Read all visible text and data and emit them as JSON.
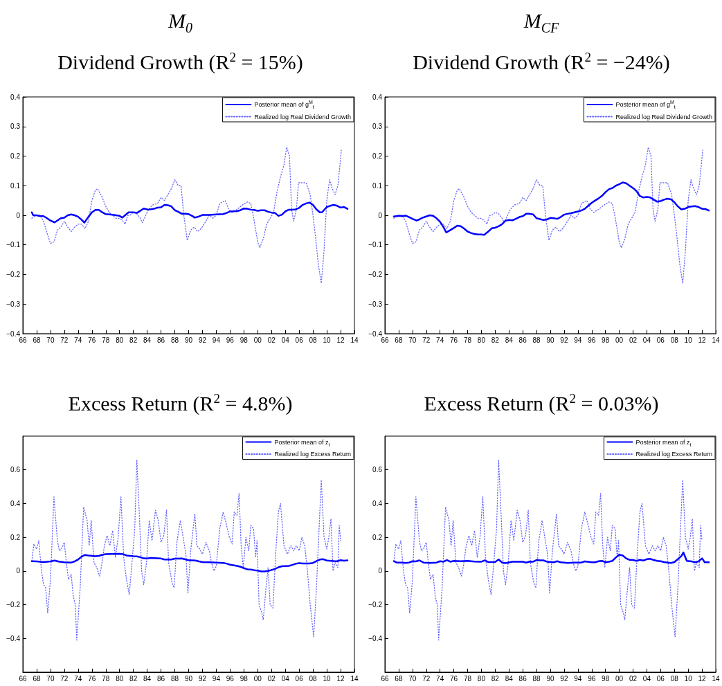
{
  "chart_data": [
    {
      "type": "line",
      "title": "Dividend Growth (R$^{2}$ = 15%)",
      "annotations": [
        "M$_{0}$"
      ],
      "xlim": [
        1966,
        2014
      ],
      "ylim": [
        -0.4,
        0.4
      ],
      "yticks": [
        -0.4,
        -0.3,
        -0.2,
        -0.1,
        0,
        0.1,
        0.2,
        0.3,
        0.4
      ],
      "xticks": [
        {
          "value": 1966,
          "label": "66"
        },
        {
          "value": 1968,
          "label": "68"
        },
        {
          "value": 1970,
          "label": "70"
        },
        {
          "value": 1972,
          "label": "72"
        },
        {
          "value": 1974,
          "label": "74"
        },
        {
          "value": 1976,
          "label": "76"
        },
        {
          "value": 1978,
          "label": "78"
        },
        {
          "value": 1980,
          "label": "80"
        },
        {
          "value": 1982,
          "label": "82"
        },
        {
          "value": 1984,
          "label": "84"
        },
        {
          "value": 1986,
          "label": "86"
        },
        {
          "value": 1988,
          "label": "88"
        },
        {
          "value": 1990,
          "label": "90"
        },
        {
          "value": 1992,
          "label": "92"
        },
        {
          "value": 1994,
          "label": "94"
        },
        {
          "value": 1996,
          "label": "96"
        },
        {
          "value": 1998,
          "label": "98"
        },
        {
          "value": 2000,
          "label": "00"
        },
        {
          "value": 2002,
          "label": "02"
        },
        {
          "value": 2004,
          "label": "04"
        },
        {
          "value": 2006,
          "label": "06"
        },
        {
          "value": 2008,
          "label": "08"
        },
        {
          "value": 2010,
          "label": "10"
        },
        {
          "value": 2012,
          "label": "12"
        },
        {
          "value": 2014,
          "label": "14"
        }
      ],
      "grid": false,
      "legend": "top right",
      "marker": "none",
      "series": [
        {
          "name": "Posterior mean of g$^{M}$$_{t}$",
          "color": "#0000ff",
          "line_style": "solid",
          "x": [
            1967.3,
            1967.5,
            1968,
            1968.5,
            1969,
            1969.5,
            1970,
            1970.6,
            1971.5,
            1972,
            1972.5,
            1973,
            1973.5,
            1974,
            1974.5,
            1974.9,
            1975.5,
            1976,
            1976.5,
            1977,
            1977.5,
            1978,
            1979,
            1979.5,
            1980,
            1980.4,
            1980.8,
            1981.3,
            1982,
            1982.5,
            1983,
            1983.5,
            1984.2,
            1985,
            1985.5,
            1986,
            1986.5,
            1987,
            1987.5,
            1988,
            1988.5,
            1989,
            1989.5,
            1990,
            1990.5,
            1990.9,
            1991.5,
            1992,
            1993,
            1994,
            1995,
            1995.5,
            1996,
            1997,
            1997.5,
            1998,
            1998.5,
            1999,
            1999.5,
            2000,
            2000.5,
            2001,
            2001.5,
            2002,
            2002.5,
            2003,
            2003.5,
            2004,
            2004.5,
            2005,
            2005.5,
            2006,
            2006.5,
            2007,
            2007.5,
            2008,
            2008.5,
            2009,
            2009.3,
            2010,
            2010.5,
            2011,
            2011.5,
            2012,
            2012.5,
            2013
          ],
          "values": [
            0.01,
            0,
            0,
            -0.003,
            -0.003,
            -0.01,
            -0.018,
            -0.024,
            -0.01,
            -0.008,
            0,
            0.003,
            0,
            -0.005,
            -0.015,
            -0.025,
            -0.005,
            0.01,
            0.018,
            0.018,
            0.01,
            0.004,
            0.002,
            0,
            -0.002,
            -0.008,
            0,
            0.01,
            0.01,
            0.008,
            0.015,
            0.023,
            0.019,
            0.022,
            0.026,
            0.027,
            0.035,
            0.034,
            0.03,
            0.017,
            0.012,
            0.005,
            0.005,
            0.004,
            -0.002,
            -0.008,
            -0.004,
            0.001,
            0.001,
            0.003,
            0.004,
            0.008,
            0.013,
            0.014,
            0.017,
            0.023,
            0.022,
            0.019,
            0.018,
            0.015,
            0.017,
            0.017,
            0.012,
            0.009,
            0.008,
            -0.002,
            0.002,
            0.013,
            0.019,
            0.019,
            0.02,
            0.025,
            0.035,
            0.04,
            0.043,
            0.035,
            0.02,
            0.01,
            0.01,
            0.028,
            0.032,
            0.035,
            0.032,
            0.026,
            0.028,
            0.022
          ]
        },
        {
          "name": "Realized log Real Dividend Growth",
          "color": "#6666ff",
          "line_style": "dotted",
          "x": [
            1967.3,
            1968,
            1968.5,
            1969,
            1969.5,
            1970,
            1970.5,
            1971,
            1971.5,
            1972,
            1972.5,
            1973,
            1973.5,
            1974,
            1974.5,
            1975,
            1975.5,
            1976,
            1976.5,
            1976.8,
            1977.5,
            1978,
            1978.5,
            1979,
            1979.5,
            1980,
            1980.5,
            1980.8,
            1981.2,
            1981.5,
            1982,
            1982.5,
            1983,
            1983.3,
            1983.8,
            1984.2,
            1984.8,
            1985.5,
            1986,
            1986.5,
            1987,
            1987.5,
            1988,
            1988.5,
            1988.9,
            1989.3,
            1989.8,
            1990.3,
            1990.8,
            1991.3,
            1991.8,
            1992.5,
            1993,
            1993.5,
            1994,
            1994.5,
            1995.3,
            1995.8,
            1996.3,
            1997,
            1997.8,
            1998.5,
            1999,
            1999.5,
            2000,
            2000.3,
            2000.8,
            2001.3,
            2001.8,
            2002.3,
            2002.8,
            2003.3,
            2003.8,
            2004.2,
            2004.6,
            2004.9,
            2005.2,
            2005.6,
            2005.9,
            2006.5,
            2007,
            2007.6,
            2008,
            2008.4,
            2008.8,
            2009.2,
            2009.6,
            2010,
            2010.4,
            2010.8,
            2011.2,
            2011.6,
            2011.9,
            2012.1
          ],
          "values": [
            -0.01,
            0,
            0,
            -0.02,
            -0.06,
            -0.095,
            -0.09,
            -0.05,
            -0.04,
            -0.02,
            -0.04,
            -0.055,
            -0.04,
            -0.03,
            -0.03,
            -0.045,
            -0.02,
            0.05,
            0.085,
            0.09,
            0.06,
            0.03,
            0.01,
            0,
            -0.01,
            -0.01,
            -0.02,
            -0.03,
            0,
            0,
            0.01,
            0.005,
            -0.01,
            -0.025,
            0,
            0.02,
            0.035,
            0.04,
            0.06,
            0.05,
            0.07,
            0.09,
            0.12,
            0.1,
            0.1,
            0,
            -0.085,
            -0.05,
            -0.04,
            -0.055,
            -0.045,
            -0.02,
            0,
            -0.01,
            0,
            0.04,
            0.05,
            0.02,
            0.01,
            0.02,
            0.035,
            0.045,
            0.04,
            -0.02,
            -0.09,
            -0.11,
            -0.08,
            -0.03,
            -0.01,
            0.01,
            0.08,
            0.13,
            0.17,
            0.23,
            0.2,
            0.02,
            -0.02,
            0.02,
            0.11,
            0.11,
            0.11,
            0.07,
            0,
            -0.08,
            -0.17,
            -0.23,
            -0.12,
            0.05,
            0.12,
            0.09,
            0.07,
            0.1,
            0.17,
            0.22
          ]
        }
      ]
    },
    {
      "type": "line",
      "title": "Dividend Growth (R$^{2}$ = −24%)",
      "annotations": [
        "M$_{CF}$"
      ],
      "xlim": [
        1966,
        2014
      ],
      "ylim": [
        -0.4,
        0.4
      ],
      "yticks": [
        -0.4,
        -0.3,
        -0.2,
        -0.1,
        0,
        0.1,
        0.2,
        0.3,
        0.4
      ],
      "xticks": [
        {
          "value": 1966,
          "label": "66"
        },
        {
          "value": 1968,
          "label": "68"
        },
        {
          "value": 1970,
          "label": "70"
        },
        {
          "value": 1972,
          "label": "72"
        },
        {
          "value": 1974,
          "label": "74"
        },
        {
          "value": 1976,
          "label": "76"
        },
        {
          "value": 1978,
          "label": "78"
        },
        {
          "value": 1980,
          "label": "80"
        },
        {
          "value": 1982,
          "label": "82"
        },
        {
          "value": 1984,
          "label": "84"
        },
        {
          "value": 1986,
          "label": "86"
        },
        {
          "value": 1988,
          "label": "88"
        },
        {
          "value": 1990,
          "label": "90"
        },
        {
          "value": 1992,
          "label": "92"
        },
        {
          "value": 1994,
          "label": "94"
        },
        {
          "value": 1996,
          "label": "96"
        },
        {
          "value": 1998,
          "label": "98"
        },
        {
          "value": 2000,
          "label": "00"
        },
        {
          "value": 2002,
          "label": "02"
        },
        {
          "value": 2004,
          "label": "04"
        },
        {
          "value": 2006,
          "label": "06"
        },
        {
          "value": 2008,
          "label": "08"
        },
        {
          "value": 2010,
          "label": "10"
        },
        {
          "value": 2012,
          "label": "12"
        },
        {
          "value": 2014,
          "label": "14"
        }
      ],
      "grid": false,
      "legend": "top right",
      "marker": "none",
      "series": [
        {
          "name": "Posterior mean of g$^{M}$$_{t}$",
          "color": "#0000ff",
          "line_style": "solid",
          "x": [
            1967.3,
            1968,
            1968.5,
            1969,
            1969.5,
            1970,
            1970.6,
            1971,
            1971.5,
            1972,
            1972.5,
            1973,
            1973.5,
            1974,
            1974.5,
            1974.9,
            1975.5,
            1976,
            1976.5,
            1977,
            1977.5,
            1978,
            1978.5,
            1979,
            1979.5,
            1980,
            1980.4,
            1981,
            1981.5,
            1982,
            1982.5,
            1983,
            1983.5,
            1984,
            1984.5,
            1985,
            1985.5,
            1986,
            1986.5,
            1987,
            1987.5,
            1988,
            1988.5,
            1989,
            1989.5,
            1990,
            1990.5,
            1991,
            1991.5,
            1992,
            1992.5,
            1993,
            1993.5,
            1994,
            1994.5,
            1995,
            1995.5,
            1996,
            1996.5,
            1997,
            1997.5,
            1998,
            1998.5,
            1999,
            1999.5,
            2000,
            2000.5,
            2001,
            2001.5,
            2002,
            2002.5,
            2003,
            2003.5,
            2004,
            2004.5,
            2005,
            2005.5,
            2006,
            2006.5,
            2007,
            2007.5,
            2008,
            2008.5,
            2009,
            2009.5,
            2010,
            2010.5,
            2011,
            2011.5,
            2012,
            2012.5,
            2013
          ],
          "values": [
            -0.004,
            -0.002,
            -0.003,
            -0.001,
            -0.006,
            -0.012,
            -0.018,
            -0.014,
            -0.008,
            -0.004,
            0,
            -0.002,
            -0.01,
            -0.022,
            -0.04,
            -0.058,
            -0.05,
            -0.043,
            -0.035,
            -0.037,
            -0.045,
            -0.055,
            -0.06,
            -0.063,
            -0.065,
            -0.065,
            -0.066,
            -0.055,
            -0.044,
            -0.042,
            -0.037,
            -0.03,
            -0.018,
            -0.016,
            -0.017,
            -0.012,
            -0.006,
            -0.003,
            0.005,
            0.005,
            0.003,
            -0.01,
            -0.013,
            -0.016,
            -0.014,
            -0.009,
            -0.01,
            -0.012,
            -0.006,
            0.002,
            0.005,
            0.007,
            0.01,
            0.013,
            0.016,
            0.022,
            0.032,
            0.042,
            0.05,
            0.057,
            0.066,
            0.078,
            0.088,
            0.092,
            0.1,
            0.105,
            0.111,
            0.108,
            0.1,
            0.092,
            0.082,
            0.065,
            0.06,
            0.062,
            0.06,
            0.053,
            0.046,
            0.048,
            0.053,
            0.056,
            0.054,
            0.044,
            0.03,
            0.02,
            0.022,
            0.028,
            0.03,
            0.031,
            0.028,
            0.022,
            0.021,
            0.016
          ]
        },
        {
          "name": "Realized log Real Dividend Growth",
          "color": "#6666ff",
          "line_style": "dotted",
          "x": [
            1967.3,
            1968,
            1968.5,
            1969,
            1969.5,
            1970,
            1970.5,
            1971,
            1971.5,
            1972,
            1972.5,
            1973,
            1973.5,
            1974,
            1974.5,
            1975,
            1975.5,
            1976,
            1976.5,
            1976.8,
            1977.5,
            1978,
            1978.5,
            1979,
            1979.5,
            1980,
            1980.5,
            1980.8,
            1981.2,
            1981.5,
            1982,
            1982.5,
            1983,
            1983.3,
            1983.8,
            1984.2,
            1984.8,
            1985.5,
            1986,
            1986.5,
            1987,
            1987.5,
            1988,
            1988.5,
            1988.9,
            1989.3,
            1989.8,
            1990.3,
            1990.8,
            1991.3,
            1991.8,
            1992.5,
            1993,
            1993.5,
            1994,
            1994.5,
            1995.3,
            1995.8,
            1996.3,
            1997,
            1997.8,
            1998.5,
            1999,
            1999.5,
            2000,
            2000.3,
            2000.8,
            2001.3,
            2001.8,
            2002.3,
            2002.8,
            2003.3,
            2003.8,
            2004.2,
            2004.6,
            2004.9,
            2005.2,
            2005.6,
            2005.9,
            2006.5,
            2007,
            2007.6,
            2008,
            2008.4,
            2008.8,
            2009.2,
            2009.6,
            2010,
            2010.4,
            2010.8,
            2011.2,
            2011.6,
            2011.9,
            2012.1
          ],
          "values": [
            -0.01,
            0,
            0,
            -0.02,
            -0.06,
            -0.095,
            -0.09,
            -0.05,
            -0.04,
            -0.02,
            -0.04,
            -0.055,
            -0.04,
            -0.03,
            -0.03,
            -0.045,
            -0.02,
            0.05,
            0.085,
            0.09,
            0.06,
            0.03,
            0.01,
            0,
            -0.01,
            -0.01,
            -0.02,
            -0.03,
            0,
            0,
            0.01,
            0.005,
            -0.01,
            -0.025,
            0,
            0.02,
            0.035,
            0.04,
            0.06,
            0.05,
            0.07,
            0.09,
            0.12,
            0.1,
            0.1,
            0,
            -0.085,
            -0.05,
            -0.04,
            -0.055,
            -0.045,
            -0.02,
            0,
            -0.01,
            0,
            0.04,
            0.05,
            0.02,
            0.01,
            0.02,
            0.035,
            0.045,
            0.04,
            -0.02,
            -0.09,
            -0.11,
            -0.08,
            -0.03,
            -0.01,
            0.01,
            0.08,
            0.13,
            0.17,
            0.23,
            0.2,
            0.02,
            -0.02,
            0.02,
            0.11,
            0.11,
            0.11,
            0.07,
            0,
            -0.08,
            -0.17,
            -0.23,
            -0.12,
            0.05,
            0.12,
            0.09,
            0.07,
            0.1,
            0.17,
            0.22
          ]
        }
      ]
    },
    {
      "type": "line",
      "title": "Excess Return (R$^{2}$ = 4.8%)",
      "xlim": [
        1966,
        2014
      ],
      "ylim": [
        -0.6,
        0.8
      ],
      "yticks": [
        -0.4,
        -0.2,
        0,
        0.2,
        0.4,
        0.6
      ],
      "xticks": [
        {
          "value": 1966,
          "label": "66"
        },
        {
          "value": 1968,
          "label": "68"
        },
        {
          "value": 1970,
          "label": "70"
        },
        {
          "value": 1972,
          "label": "72"
        },
        {
          "value": 1974,
          "label": "74"
        },
        {
          "value": 1976,
          "label": "76"
        },
        {
          "value": 1978,
          "label": "78"
        },
        {
          "value": 1980,
          "label": "80"
        },
        {
          "value": 1982,
          "label": "82"
        },
        {
          "value": 1984,
          "label": "84"
        },
        {
          "value": 1986,
          "label": "86"
        },
        {
          "value": 1988,
          "label": "88"
        },
        {
          "value": 1990,
          "label": "90"
        },
        {
          "value": 1992,
          "label": "92"
        },
        {
          "value": 1994,
          "label": "94"
        },
        {
          "value": 1996,
          "label": "96"
        },
        {
          "value": 1998,
          "label": "98"
        },
        {
          "value": 2000,
          "label": "00"
        },
        {
          "value": 2002,
          "label": "02"
        },
        {
          "value": 2004,
          "label": "04"
        },
        {
          "value": 2006,
          "label": "06"
        },
        {
          "value": 2008,
          "label": "08"
        },
        {
          "value": 2010,
          "label": "10"
        },
        {
          "value": 2012,
          "label": "12"
        },
        {
          "value": 2014,
          "label": "14"
        }
      ],
      "grid": false,
      "legend": "top right",
      "marker": "none",
      "series": [
        {
          "name": "Posterior mean of z$_{t}$",
          "color": "#0000ff",
          "line_style": "solid",
          "x": [
            1967.3,
            1968,
            1969,
            1970,
            1970.6,
            1971.2,
            1972,
            1973,
            1973.5,
            1974,
            1974.5,
            1975,
            1975.5,
            1976,
            1976.5,
            1977,
            1977.5,
            1978,
            1979,
            1980,
            1980.5,
            1981,
            1982,
            1982.5,
            1983,
            1983.5,
            1984,
            1984.5,
            1985.5,
            1986,
            1986.5,
            1987.5,
            1988,
            1989,
            1989.5,
            1990,
            1991,
            1991.5,
            1992,
            1993,
            1994,
            1995,
            1995.5,
            1996,
            1997,
            1997.5,
            1998,
            1998.5,
            1999,
            1999.5,
            2000,
            2000.5,
            2001,
            2001.5,
            2002,
            2002.5,
            2003,
            2003.5,
            2004.5,
            2005,
            2005.5,
            2006,
            2006.5,
            2007,
            2007.5,
            2008,
            2008.5,
            2009,
            2009.5,
            2010,
            2011,
            2011.5,
            2012,
            2012.5,
            2013
          ],
          "values": [
            0.058,
            0.057,
            0.053,
            0.057,
            0.062,
            0.056,
            0.052,
            0.05,
            0.057,
            0.068,
            0.085,
            0.095,
            0.092,
            0.09,
            0.088,
            0.09,
            0.096,
            0.1,
            0.101,
            0.102,
            0.1,
            0.092,
            0.088,
            0.087,
            0.082,
            0.075,
            0.074,
            0.077,
            0.075,
            0.074,
            0.068,
            0.068,
            0.073,
            0.074,
            0.069,
            0.064,
            0.062,
            0.057,
            0.053,
            0.052,
            0.05,
            0.048,
            0.044,
            0.037,
            0.03,
            0.025,
            0.017,
            0.01,
            0.009,
            0.005,
            0.002,
            -0.003,
            -0.003,
            0,
            0.006,
            0.012,
            0.022,
            0.028,
            0.03,
            0.036,
            0.043,
            0.047,
            0.045,
            0.045,
            0.045,
            0.048,
            0.058,
            0.068,
            0.07,
            0.062,
            0.059,
            0.058,
            0.064,
            0.061,
            0.063
          ]
        },
        {
          "name": "Realized log Excess Return",
          "color": "#6666ff",
          "line_style": "dotted",
          "x": [
            1967.3,
            1967.6,
            1968,
            1968.3,
            1968.7,
            1969,
            1969.3,
            1969.6,
            1970,
            1970.5,
            1971,
            1971.3,
            1971.6,
            1972,
            1972.3,
            1972.6,
            1973,
            1973.3,
            1973.6,
            1973.8,
            1974.3,
            1974.8,
            1975.3,
            1975.6,
            1975.9,
            1976.3,
            1976.7,
            1977.1,
            1977.4,
            1977.8,
            1978.2,
            1978.6,
            1979,
            1979.4,
            1979.8,
            1980.2,
            1980.6,
            1981,
            1981.4,
            1981.8,
            1982.2,
            1982.5,
            1982.9,
            1983.2,
            1983.5,
            1983.9,
            1984.3,
            1984.7,
            1985.2,
            1985.6,
            1986,
            1986.4,
            1986.8,
            1987.1,
            1987.6,
            1987.9,
            1988.3,
            1988.8,
            1989.2,
            1989.6,
            1989.9,
            1990.3,
            1990.9,
            1991.2,
            1991.6,
            1992,
            1992.5,
            1993,
            1993.3,
            1993.7,
            1994,
            1994.5,
            1995,
            1995.5,
            1995.9,
            1996.3,
            1996.6,
            1997,
            1997.3,
            1997.6,
            1997.9,
            1998.3,
            1998.7,
            1999,
            1999.4,
            1999.7,
            1999.9,
            2000.2,
            2000.6,
            2000.8,
            2001.2,
            2001.5,
            2001.8,
            2002.2,
            2002.6,
            2003,
            2003.3,
            2003.8,
            2004.3,
            2004.8,
            2005.2,
            2005.6,
            2006,
            2006.4,
            2006.8,
            2007.2,
            2007.6,
            2008.1,
            2008.5,
            2009.2,
            2009.6,
            2010,
            2010.3,
            2010.6,
            2010.9,
            2011.2,
            2011.6,
            2011.8,
            2012
          ],
          "values": [
            0.06,
            0.16,
            0.13,
            0.18,
            0,
            -0.08,
            -0.1,
            -0.25,
            -0.05,
            0.44,
            0.18,
            0.12,
            0.13,
            0.17,
            0.05,
            -0.05,
            -0.02,
            -0.15,
            -0.2,
            -0.41,
            -0.1,
            0.38,
            0.3,
            0.15,
            0.3,
            0.05,
            0.02,
            -0.03,
            0.03,
            0.15,
            0.21,
            0.15,
            0.24,
            0.08,
            0.2,
            0.44,
            0.08,
            -0.05,
            -0.14,
            0.05,
            0.25,
            0.66,
            0.3,
            0,
            -0.08,
            0.05,
            0.3,
            0.18,
            0.36,
            0.3,
            0.17,
            0.21,
            0.36,
            0.05,
            -0.07,
            -0.1,
            0.17,
            0.3,
            0.2,
            0.1,
            -0.13,
            0.12,
            0.34,
            0.15,
            0.13,
            0.1,
            0.17,
            0.12,
            0.05,
            0,
            0.03,
            0.25,
            0.35,
            0.27,
            0.2,
            0.16,
            0.35,
            0.33,
            0.46,
            0.15,
            0.02,
            0.2,
            0.12,
            0.27,
            0.25,
            0.08,
            0.18,
            -0.2,
            -0.25,
            -0.29,
            -0.1,
            0.02,
            -0.2,
            -0.22,
            0.1,
            0.35,
            0.4,
            0.15,
            0.1,
            0.15,
            0.12,
            0.15,
            0.12,
            0.2,
            0.15,
            0,
            -0.2,
            -0.39,
            -0.1,
            0.54,
            0.2,
            0.13,
            0.2,
            0.31,
            0,
            0.05,
            0.02,
            0.27,
            0.18
          ]
        }
      ]
    },
    {
      "type": "line",
      "title": "Excess Return (R$^{2}$ = 0.03%)",
      "xlim": [
        1966,
        2014
      ],
      "ylim": [
        -0.6,
        0.8
      ],
      "yticks": [
        -0.4,
        -0.2,
        0,
        0.2,
        0.4,
        0.6
      ],
      "xticks": [
        {
          "value": 1966,
          "label": "66"
        },
        {
          "value": 1968,
          "label": "68"
        },
        {
          "value": 1970,
          "label": "70"
        },
        {
          "value": 1972,
          "label": "72"
        },
        {
          "value": 1974,
          "label": "74"
        },
        {
          "value": 1976,
          "label": "76"
        },
        {
          "value": 1978,
          "label": "78"
        },
        {
          "value": 1980,
          "label": "80"
        },
        {
          "value": 1982,
          "label": "82"
        },
        {
          "value": 1984,
          "label": "84"
        },
        {
          "value": 1986,
          "label": "86"
        },
        {
          "value": 1988,
          "label": "88"
        },
        {
          "value": 1990,
          "label": "90"
        },
        {
          "value": 1992,
          "label": "92"
        },
        {
          "value": 1994,
          "label": "94"
        },
        {
          "value": 1996,
          "label": "96"
        },
        {
          "value": 1998,
          "label": "98"
        },
        {
          "value": 2000,
          "label": "00"
        },
        {
          "value": 2002,
          "label": "02"
        },
        {
          "value": 2004,
          "label": "04"
        },
        {
          "value": 2006,
          "label": "06"
        },
        {
          "value": 2008,
          "label": "08"
        },
        {
          "value": 2010,
          "label": "10"
        },
        {
          "value": 2012,
          "label": "12"
        },
        {
          "value": 2014,
          "label": "14"
        }
      ],
      "grid": false,
      "legend": "top right",
      "marker": "none",
      "series": [
        {
          "name": "Posterior mean of z$_{t}$",
          "color": "#0000ff",
          "line_style": "solid",
          "x": [
            1967.3,
            1967.7,
            1968.5,
            1969,
            1969.5,
            1970,
            1970.5,
            1971,
            1971.6,
            1972.5,
            1973.5,
            1974,
            1974.5,
            1975,
            1975.5,
            1976,
            1977,
            1978,
            1979,
            1980,
            1980.5,
            1981,
            1982,
            1982.5,
            1983,
            1983.5,
            1984.5,
            1986,
            1986.5,
            1987,
            1987.5,
            1988,
            1988.5,
            1989,
            1989.5,
            1990.5,
            1991,
            1991.5,
            1992.5,
            1993.5,
            1994.5,
            1995,
            1996,
            1996.5,
            1997,
            1997.5,
            1998,
            1998.5,
            1999,
            1999.5,
            2000,
            2000.5,
            2001,
            2001.5,
            2002,
            2002.5,
            2003,
            2003.5,
            2004,
            2004.5,
            2005,
            2005.5,
            2006,
            2006.5,
            2007,
            2007.5,
            2008,
            2008.5,
            2009,
            2009.3,
            2009.8,
            2010.5,
            2011,
            2011.5,
            2012,
            2012.4,
            2013
          ],
          "values": [
            0.058,
            0.05,
            0.05,
            0.048,
            0.05,
            0.058,
            0.057,
            0.063,
            0.05,
            0.048,
            0.05,
            0.058,
            0.055,
            0.065,
            0.055,
            0.06,
            0.058,
            0.06,
            0.056,
            0.055,
            0.063,
            0.053,
            0.054,
            0.068,
            0.05,
            0.047,
            0.055,
            0.055,
            0.05,
            0.056,
            0.055,
            0.065,
            0.063,
            0.063,
            0.055,
            0.052,
            0.058,
            0.052,
            0.048,
            0.05,
            0.05,
            0.057,
            0.052,
            0.052,
            0.058,
            0.06,
            0.052,
            0.055,
            0.06,
            0.08,
            0.097,
            0.092,
            0.075,
            0.066,
            0.065,
            0.06,
            0.066,
            0.062,
            0.07,
            0.072,
            0.065,
            0.06,
            0.058,
            0.053,
            0.05,
            0.048,
            0.053,
            0.07,
            0.088,
            0.11,
            0.06,
            0.057,
            0.052,
            0.057,
            0.075,
            0.052,
            0.052
          ]
        },
        {
          "name": "Realized log Excess Return",
          "color": "#6666ff",
          "line_style": "dotted",
          "x": [
            1967.3,
            1967.6,
            1968,
            1968.3,
            1968.7,
            1969,
            1969.3,
            1969.6,
            1970,
            1970.5,
            1971,
            1971.3,
            1971.6,
            1972,
            1972.3,
            1972.6,
            1973,
            1973.3,
            1973.6,
            1973.8,
            1974.3,
            1974.8,
            1975.3,
            1975.6,
            1975.9,
            1976.3,
            1976.7,
            1977.1,
            1977.4,
            1977.8,
            1978.2,
            1978.6,
            1979,
            1979.4,
            1979.8,
            1980.2,
            1980.6,
            1981,
            1981.4,
            1981.8,
            1982.2,
            1982.5,
            1982.9,
            1983.2,
            1983.5,
            1983.9,
            1984.3,
            1984.7,
            1985.2,
            1985.6,
            1986,
            1986.4,
            1986.8,
            1987.1,
            1987.6,
            1987.9,
            1988.3,
            1988.8,
            1989.2,
            1989.6,
            1989.9,
            1990.3,
            1990.9,
            1991.2,
            1991.6,
            1992,
            1992.5,
            1993,
            1993.3,
            1993.7,
            1994,
            1994.5,
            1995,
            1995.5,
            1995.9,
            1996.3,
            1996.6,
            1997,
            1997.3,
            1997.6,
            1997.9,
            1998.3,
            1998.7,
            1999,
            1999.4,
            1999.7,
            1999.9,
            2000.2,
            2000.6,
            2000.8,
            2001.2,
            2001.5,
            2001.8,
            2002.2,
            2002.6,
            2003,
            2003.3,
            2003.8,
            2004.3,
            2004.8,
            2005.2,
            2005.6,
            2006,
            2006.4,
            2006.8,
            2007.2,
            2007.6,
            2008.1,
            2008.5,
            2009.2,
            2009.6,
            2010,
            2010.3,
            2010.6,
            2010.9,
            2011.2,
            2011.6,
            2011.8,
            2012
          ],
          "values": [
            0.06,
            0.16,
            0.13,
            0.18,
            0,
            -0.08,
            -0.1,
            -0.25,
            -0.05,
            0.44,
            0.18,
            0.12,
            0.13,
            0.17,
            0.05,
            -0.05,
            -0.02,
            -0.15,
            -0.2,
            -0.41,
            -0.1,
            0.38,
            0.3,
            0.15,
            0.3,
            0.05,
            0.02,
            -0.03,
            0.03,
            0.15,
            0.21,
            0.15,
            0.24,
            0.08,
            0.2,
            0.44,
            0.08,
            -0.05,
            -0.14,
            0.05,
            0.25,
            0.66,
            0.3,
            0,
            -0.08,
            0.05,
            0.3,
            0.18,
            0.36,
            0.3,
            0.17,
            0.21,
            0.36,
            0.05,
            -0.07,
            -0.1,
            0.17,
            0.3,
            0.2,
            0.1,
            -0.13,
            0.12,
            0.34,
            0.15,
            0.13,
            0.1,
            0.17,
            0.12,
            0.05,
            0,
            0.03,
            0.25,
            0.35,
            0.27,
            0.2,
            0.16,
            0.35,
            0.33,
            0.46,
            0.15,
            0.02,
            0.2,
            0.12,
            0.27,
            0.25,
            0.08,
            0.18,
            -0.2,
            -0.25,
            -0.29,
            -0.1,
            0.02,
            -0.2,
            -0.22,
            0.1,
            0.35,
            0.4,
            0.15,
            0.1,
            0.15,
            0.12,
            0.15,
            0.12,
            0.2,
            0.15,
            0,
            -0.2,
            -0.39,
            -0.1,
            0.54,
            0.2,
            0.13,
            0.2,
            0.31,
            0,
            0.05,
            0.02,
            0.27,
            0.18
          ]
        }
      ]
    }
  ]
}
